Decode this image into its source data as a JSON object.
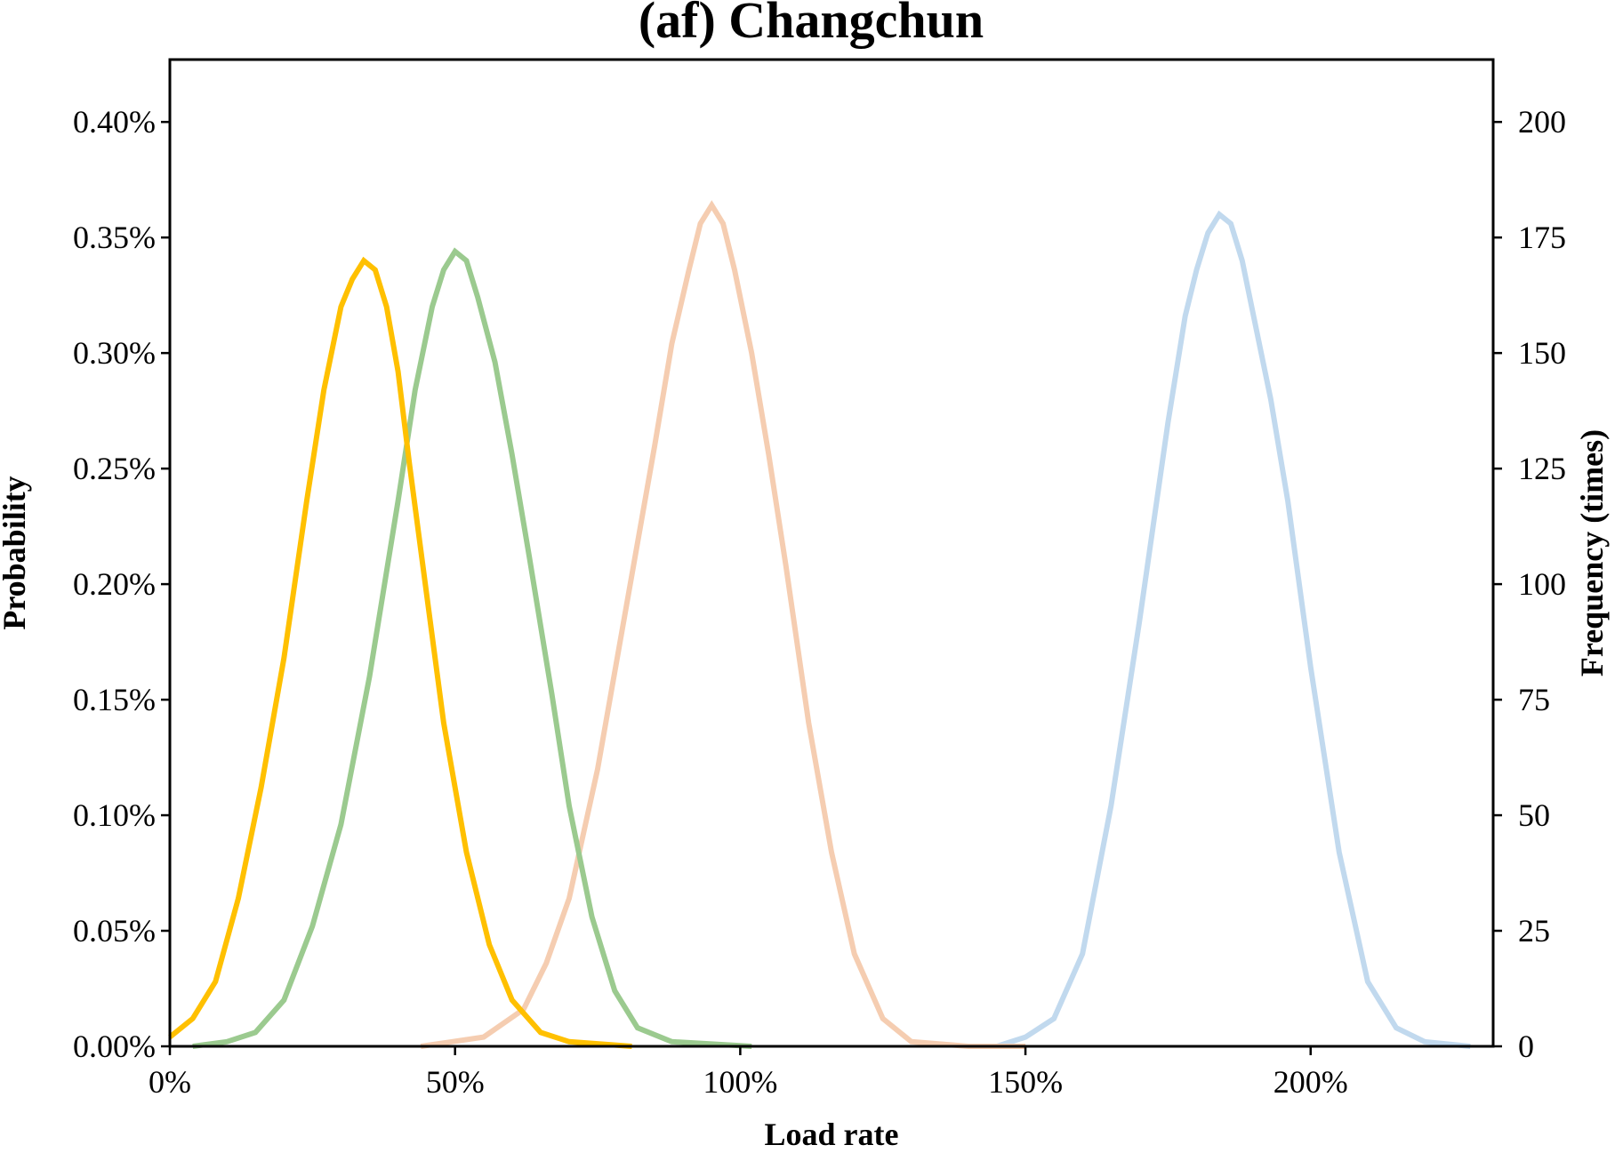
{
  "chart_data": {
    "type": "line",
    "title": "(af) Changchun",
    "xlabel": "Load rate",
    "ylabel_left": "Probability",
    "ylabel_right": "Frequency (times)",
    "xlim": [
      0,
      2.32
    ],
    "ylim_left": [
      0,
      0.00427
    ],
    "ylim_right": [
      0,
      213.5
    ],
    "grid": false,
    "x_ticks": [
      {
        "value": 0,
        "label": "0%"
      },
      {
        "value": 0.5,
        "label": "50%"
      },
      {
        "value": 1.0,
        "label": "100%"
      },
      {
        "value": 1.5,
        "label": "150%"
      },
      {
        "value": 2.0,
        "label": "200%"
      }
    ],
    "y_ticks_left": [
      {
        "value": 0,
        "label": "0.00%"
      },
      {
        "value": 0.0005,
        "label": "0.05%"
      },
      {
        "value": 0.001,
        "label": "0.10%"
      },
      {
        "value": 0.0015,
        "label": "0.15%"
      },
      {
        "value": 0.002,
        "label": "0.20%"
      },
      {
        "value": 0.0025,
        "label": "0.25%"
      },
      {
        "value": 0.003,
        "label": "0.30%"
      },
      {
        "value": 0.0035,
        "label": "0.35%"
      },
      {
        "value": 0.004,
        "label": "0.40%"
      }
    ],
    "y_ticks_right": [
      {
        "value": 0,
        "label": "0"
      },
      {
        "value": 25,
        "label": "25"
      },
      {
        "value": 50,
        "label": "50"
      },
      {
        "value": 75,
        "label": "75"
      },
      {
        "value": 100,
        "label": "100"
      },
      {
        "value": 125,
        "label": "125"
      },
      {
        "value": 150,
        "label": "150"
      },
      {
        "value": 175,
        "label": "175"
      },
      {
        "value": 200,
        "label": "200"
      }
    ],
    "series": [
      {
        "color": "#c1d9ee",
        "x": [
          1.45,
          1.5,
          1.55,
          1.6,
          1.65,
          1.7,
          1.75,
          1.78,
          1.8,
          1.82,
          1.84,
          1.86,
          1.88,
          1.9,
          1.93,
          1.96,
          2.0,
          2.05,
          2.1,
          2.15,
          2.2,
          2.28
        ],
        "y": [
          0,
          2,
          6,
          20,
          52,
          92,
          135,
          158,
          168,
          176,
          180,
          178,
          170,
          158,
          140,
          118,
          82,
          42,
          14,
          4,
          1,
          0
        ]
      },
      {
        "color": "#f5cdb1",
        "x": [
          0.44,
          0.55,
          0.62,
          0.66,
          0.7,
          0.75,
          0.8,
          0.85,
          0.88,
          0.91,
          0.93,
          0.95,
          0.97,
          0.99,
          1.02,
          1.05,
          1.08,
          1.12,
          1.16,
          1.2,
          1.25,
          1.3,
          1.4,
          1.5
        ],
        "y": [
          0,
          2,
          8,
          18,
          32,
          60,
          95,
          130,
          152,
          168,
          178,
          182,
          178,
          168,
          150,
          128,
          104,
          70,
          42,
          20,
          6,
          1,
          0,
          0
        ]
      },
      {
        "color": "#9bca8f",
        "x": [
          0.04,
          0.1,
          0.15,
          0.2,
          0.25,
          0.3,
          0.35,
          0.4,
          0.43,
          0.46,
          0.48,
          0.5,
          0.52,
          0.54,
          0.57,
          0.6,
          0.63,
          0.67,
          0.7,
          0.74,
          0.78,
          0.82,
          0.88,
          1.02
        ],
        "y": [
          0,
          1,
          3,
          10,
          26,
          48,
          80,
          118,
          142,
          160,
          168,
          172,
          170,
          162,
          148,
          128,
          106,
          76,
          52,
          28,
          12,
          4,
          1,
          0
        ]
      },
      {
        "color": "#ffc000",
        "x": [
          0,
          0.04,
          0.08,
          0.12,
          0.16,
          0.2,
          0.24,
          0.27,
          0.3,
          0.32,
          0.34,
          0.36,
          0.38,
          0.4,
          0.42,
          0.45,
          0.48,
          0.52,
          0.56,
          0.6,
          0.65,
          0.7,
          0.81
        ],
        "y": [
          2,
          6,
          14,
          32,
          56,
          84,
          118,
          142,
          160,
          166,
          170,
          168,
          160,
          146,
          126,
          98,
          70,
          42,
          22,
          10,
          3,
          1,
          0
        ]
      }
    ]
  }
}
